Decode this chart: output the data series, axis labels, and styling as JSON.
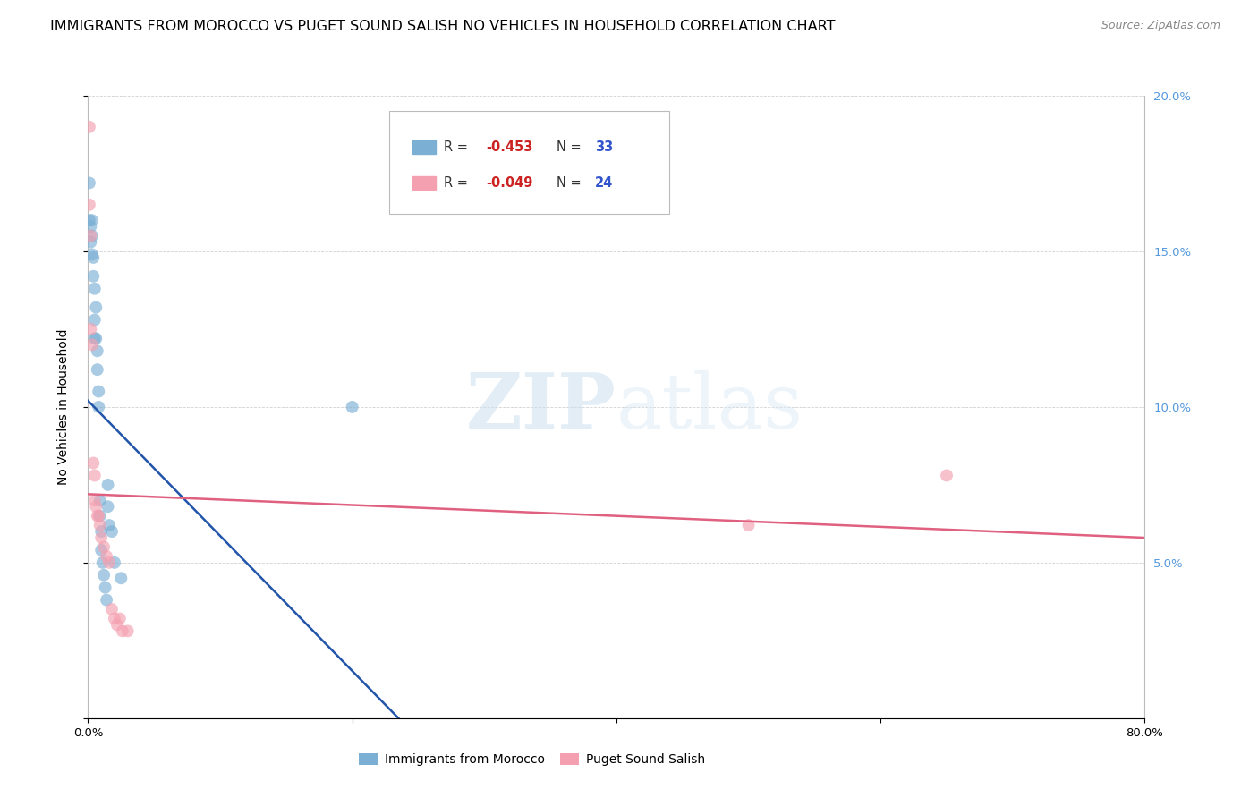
{
  "title": "IMMIGRANTS FROM MOROCCO VS PUGET SOUND SALISH NO VEHICLES IN HOUSEHOLD CORRELATION CHART",
  "source": "Source: ZipAtlas.com",
  "ylabel": "No Vehicles in Household",
  "legend_blue_r": "-0.453",
  "legend_blue_n": "33",
  "legend_pink_r": "-0.049",
  "legend_pink_n": "24",
  "legend_blue_label": "Immigrants from Morocco",
  "legend_pink_label": "Puget Sound Salish",
  "xlim": [
    0.0,
    0.8
  ],
  "ylim": [
    0.0,
    0.2
  ],
  "xtick_positions": [
    0.0,
    0.2,
    0.4,
    0.6,
    0.8
  ],
  "xtick_labels": [
    "0.0%",
    "",
    "",
    "",
    "80.0%"
  ],
  "ytick_positions": [
    0.0,
    0.05,
    0.1,
    0.15,
    0.2
  ],
  "ytick_labels_right": [
    "",
    "5.0%",
    "10.0%",
    "15.0%",
    "20.0%"
  ],
  "blue_x": [
    0.001,
    0.001,
    0.002,
    0.002,
    0.003,
    0.003,
    0.003,
    0.004,
    0.004,
    0.005,
    0.005,
    0.005,
    0.006,
    0.006,
    0.007,
    0.007,
    0.008,
    0.008,
    0.009,
    0.009,
    0.01,
    0.01,
    0.011,
    0.012,
    0.013,
    0.014,
    0.015,
    0.015,
    0.016,
    0.018,
    0.02,
    0.025,
    0.2
  ],
  "blue_y": [
    0.172,
    0.16,
    0.158,
    0.153,
    0.16,
    0.155,
    0.149,
    0.148,
    0.142,
    0.138,
    0.128,
    0.122,
    0.132,
    0.122,
    0.118,
    0.112,
    0.105,
    0.1,
    0.07,
    0.065,
    0.06,
    0.054,
    0.05,
    0.046,
    0.042,
    0.038,
    0.075,
    0.068,
    0.062,
    0.06,
    0.05,
    0.045,
    0.1
  ],
  "pink_x": [
    0.001,
    0.001,
    0.002,
    0.002,
    0.003,
    0.004,
    0.005,
    0.005,
    0.006,
    0.007,
    0.008,
    0.009,
    0.01,
    0.012,
    0.014,
    0.016,
    0.018,
    0.02,
    0.022,
    0.024,
    0.026,
    0.03,
    0.5,
    0.65
  ],
  "pink_y": [
    0.19,
    0.165,
    0.155,
    0.125,
    0.12,
    0.082,
    0.078,
    0.07,
    0.068,
    0.065,
    0.065,
    0.062,
    0.058,
    0.055,
    0.052,
    0.05,
    0.035,
    0.032,
    0.03,
    0.032,
    0.028,
    0.028,
    0.062,
    0.078
  ],
  "blue_line_x": [
    0.0,
    0.235
  ],
  "blue_line_y": [
    0.102,
    0.0
  ],
  "pink_line_x": [
    0.0,
    0.8
  ],
  "pink_line_y": [
    0.072,
    0.058
  ],
  "watermark": "ZIPatlas",
  "bg_color": "#ffffff",
  "blue_color": "#7bafd4",
  "pink_color": "#f4a0b0",
  "blue_line_color": "#2255aa",
  "pink_line_color": "#e06080",
  "right_axis_color": "#5599dd",
  "title_fontsize": 11.5,
  "tick_fontsize": 9.5,
  "ylabel_fontsize": 10
}
